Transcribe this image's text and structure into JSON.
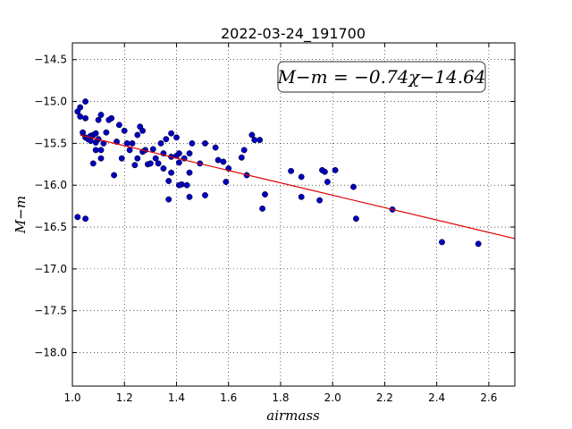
{
  "chart_data": {
    "type": "scatter",
    "title": "2022-03-24_191700",
    "xlabel": "airmass",
    "ylabel": "M−m",
    "xlim": [
      1.0,
      2.7
    ],
    "ylim": [
      -18.4,
      -14.3
    ],
    "x_ticks": [
      1.0,
      1.2,
      1.4,
      1.6,
      1.8,
      2.0,
      2.2,
      2.4,
      2.6
    ],
    "x_tick_labels": [
      "1.0",
      "1.2",
      "1.4",
      "1.6",
      "1.8",
      "2.0",
      "2.2",
      "2.4",
      "2.6"
    ],
    "y_ticks": [
      -14.5,
      -15.0,
      -15.5,
      -16.0,
      -16.5,
      -17.0,
      -17.5,
      -18.0
    ],
    "y_tick_labels": [
      "−14.5",
      "−15.0",
      "−15.5",
      "−16.0",
      "−16.5",
      "−17.0",
      "−17.5",
      "−18.0"
    ],
    "grid": true,
    "annotation": "M−m = −0.74χ−14.64",
    "fit_line": {
      "slope": -0.74,
      "intercept": -14.64,
      "x_range": [
        1.03,
        2.7
      ],
      "color": "#dd0000"
    },
    "marker_color": "#0000bb",
    "points": [
      [
        1.02,
        -16.38
      ],
      [
        1.05,
        -16.4
      ],
      [
        1.02,
        -15.12
      ],
      [
        1.03,
        -15.07
      ],
      [
        1.03,
        -15.18
      ],
      [
        1.05,
        -15.0
      ],
      [
        1.04,
        -15.37
      ],
      [
        1.05,
        -15.43
      ],
      [
        1.06,
        -15.45
      ],
      [
        1.07,
        -15.41
      ],
      [
        1.08,
        -15.4
      ],
      [
        1.09,
        -15.38
      ],
      [
        1.07,
        -15.47
      ],
      [
        1.05,
        -15.2
      ],
      [
        1.09,
        -15.49
      ],
      [
        1.08,
        -15.74
      ],
      [
        1.09,
        -15.58
      ],
      [
        1.1,
        -15.22
      ],
      [
        1.11,
        -15.16
      ],
      [
        1.1,
        -15.45
      ],
      [
        1.11,
        -15.68
      ],
      [
        1.11,
        -15.58
      ],
      [
        1.12,
        -15.5
      ],
      [
        1.13,
        -15.37
      ],
      [
        1.14,
        -15.22
      ],
      [
        1.15,
        -15.2
      ],
      [
        1.16,
        -15.88
      ],
      [
        1.17,
        -15.48
      ],
      [
        1.18,
        -15.28
      ],
      [
        1.19,
        -15.68
      ],
      [
        1.2,
        -15.35
      ],
      [
        1.21,
        -15.5
      ],
      [
        1.22,
        -15.58
      ],
      [
        1.23,
        -15.5
      ],
      [
        1.24,
        -15.76
      ],
      [
        1.25,
        -15.68
      ],
      [
        1.25,
        -15.4
      ],
      [
        1.26,
        -15.3
      ],
      [
        1.27,
        -15.35
      ],
      [
        1.27,
        -15.6
      ],
      [
        1.28,
        -15.58
      ],
      [
        1.29,
        -15.75
      ],
      [
        1.3,
        -15.74
      ],
      [
        1.31,
        -15.57
      ],
      [
        1.32,
        -15.68
      ],
      [
        1.33,
        -15.74
      ],
      [
        1.34,
        -15.5
      ],
      [
        1.35,
        -15.62
      ],
      [
        1.35,
        -15.8
      ],
      [
        1.36,
        -15.45
      ],
      [
        1.37,
        -15.95
      ],
      [
        1.37,
        -16.17
      ],
      [
        1.38,
        -15.38
      ],
      [
        1.38,
        -15.66
      ],
      [
        1.38,
        -15.85
      ],
      [
        1.4,
        -15.43
      ],
      [
        1.4,
        -15.65
      ],
      [
        1.41,
        -15.62
      ],
      [
        1.41,
        -15.73
      ],
      [
        1.41,
        -16.0
      ],
      [
        1.42,
        -15.99
      ],
      [
        1.43,
        -15.68
      ],
      [
        1.44,
        -16.0
      ],
      [
        1.45,
        -15.62
      ],
      [
        1.45,
        -15.85
      ],
      [
        1.45,
        -16.14
      ],
      [
        1.46,
        -15.5
      ],
      [
        1.49,
        -15.74
      ],
      [
        1.51,
        -15.5
      ],
      [
        1.51,
        -16.12
      ],
      [
        1.55,
        -15.55
      ],
      [
        1.56,
        -15.7
      ],
      [
        1.58,
        -15.72
      ],
      [
        1.59,
        -15.96
      ],
      [
        1.6,
        -15.8
      ],
      [
        1.65,
        -15.67
      ],
      [
        1.66,
        -15.58
      ],
      [
        1.67,
        -15.88
      ],
      [
        1.69,
        -15.4
      ],
      [
        1.7,
        -15.46
      ],
      [
        1.72,
        -15.46
      ],
      [
        1.73,
        -16.28
      ],
      [
        1.74,
        -16.11
      ],
      [
        1.84,
        -15.83
      ],
      [
        1.88,
        -15.9
      ],
      [
        1.88,
        -16.14
      ],
      [
        1.95,
        -16.18
      ],
      [
        1.96,
        -15.82
      ],
      [
        1.97,
        -15.84
      ],
      [
        1.98,
        -15.96
      ],
      [
        2.01,
        -15.82
      ],
      [
        2.08,
        -16.02
      ],
      [
        2.09,
        -16.4
      ],
      [
        2.23,
        -16.29
      ],
      [
        2.42,
        -16.68
      ],
      [
        2.56,
        -16.7
      ]
    ]
  }
}
